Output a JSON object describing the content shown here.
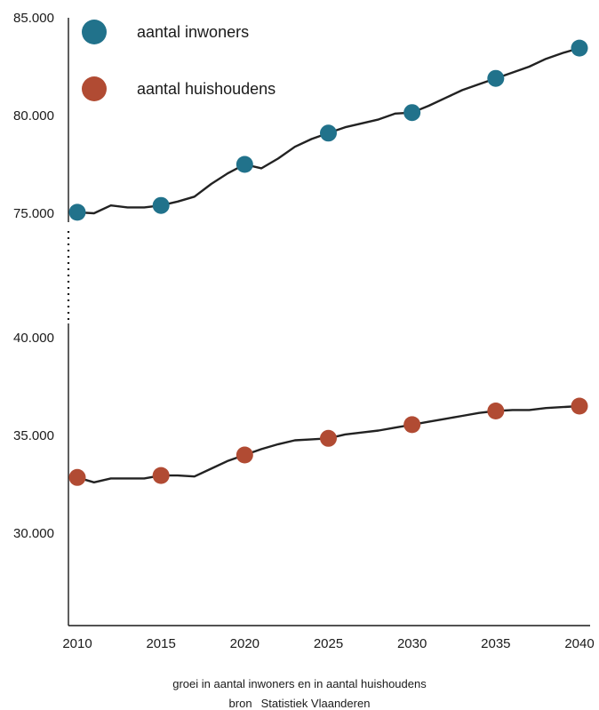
{
  "chart_data": {
    "type": "line",
    "x": [
      2010,
      2011,
      2012,
      2013,
      2014,
      2015,
      2016,
      2017,
      2018,
      2019,
      2020,
      2021,
      2022,
      2023,
      2024,
      2025,
      2026,
      2027,
      2028,
      2029,
      2030,
      2031,
      2032,
      2033,
      2034,
      2035,
      2036,
      2037,
      2038,
      2039,
      2040
    ],
    "marker_years": [
      2010,
      2015,
      2020,
      2025,
      2030,
      2035,
      2040
    ],
    "x_ticks": [
      "2010",
      "2015",
      "2020",
      "2025",
      "2030",
      "2035",
      "2040"
    ],
    "axis_breaks": [
      {
        "range": [
          75000,
          85000
        ],
        "ticks": [
          "85.000",
          "80.000",
          "75.000"
        ],
        "tick_values": [
          85000,
          80000,
          75000
        ]
      },
      {
        "range": [
          25000,
          40000
        ],
        "ticks": [
          "40.000",
          "35.000",
          "30.000"
        ],
        "tick_values": [
          40000,
          35000,
          30000
        ]
      }
    ],
    "series": [
      {
        "name": "aantal inwoners",
        "color": "#21728b",
        "values": [
          75050,
          75000,
          75400,
          75300,
          75300,
          75400,
          75600,
          75850,
          76500,
          77050,
          77500,
          77300,
          77800,
          78400,
          78800,
          79100,
          79400,
          79600,
          79800,
          80100,
          80150,
          80500,
          80900,
          81300,
          81600,
          81900,
          82200,
          82500,
          82900,
          83200,
          83450
        ]
      },
      {
        "name": "aantal huishoudens",
        "color": "#b14b33",
        "values": [
          32850,
          32600,
          32800,
          32800,
          32800,
          32950,
          32950,
          32900,
          33300,
          33700,
          34000,
          34300,
          34550,
          34750,
          34800,
          34850,
          35050,
          35150,
          35250,
          35400,
          35550,
          35700,
          35850,
          36000,
          36150,
          36250,
          36300,
          36300,
          36400,
          36450,
          36500
        ]
      }
    ]
  },
  "caption": {
    "main": "groei in aantal inwoners en in aantal huishoudens",
    "source_label": "bron",
    "source_name": "Statistiek Vlaanderen"
  }
}
